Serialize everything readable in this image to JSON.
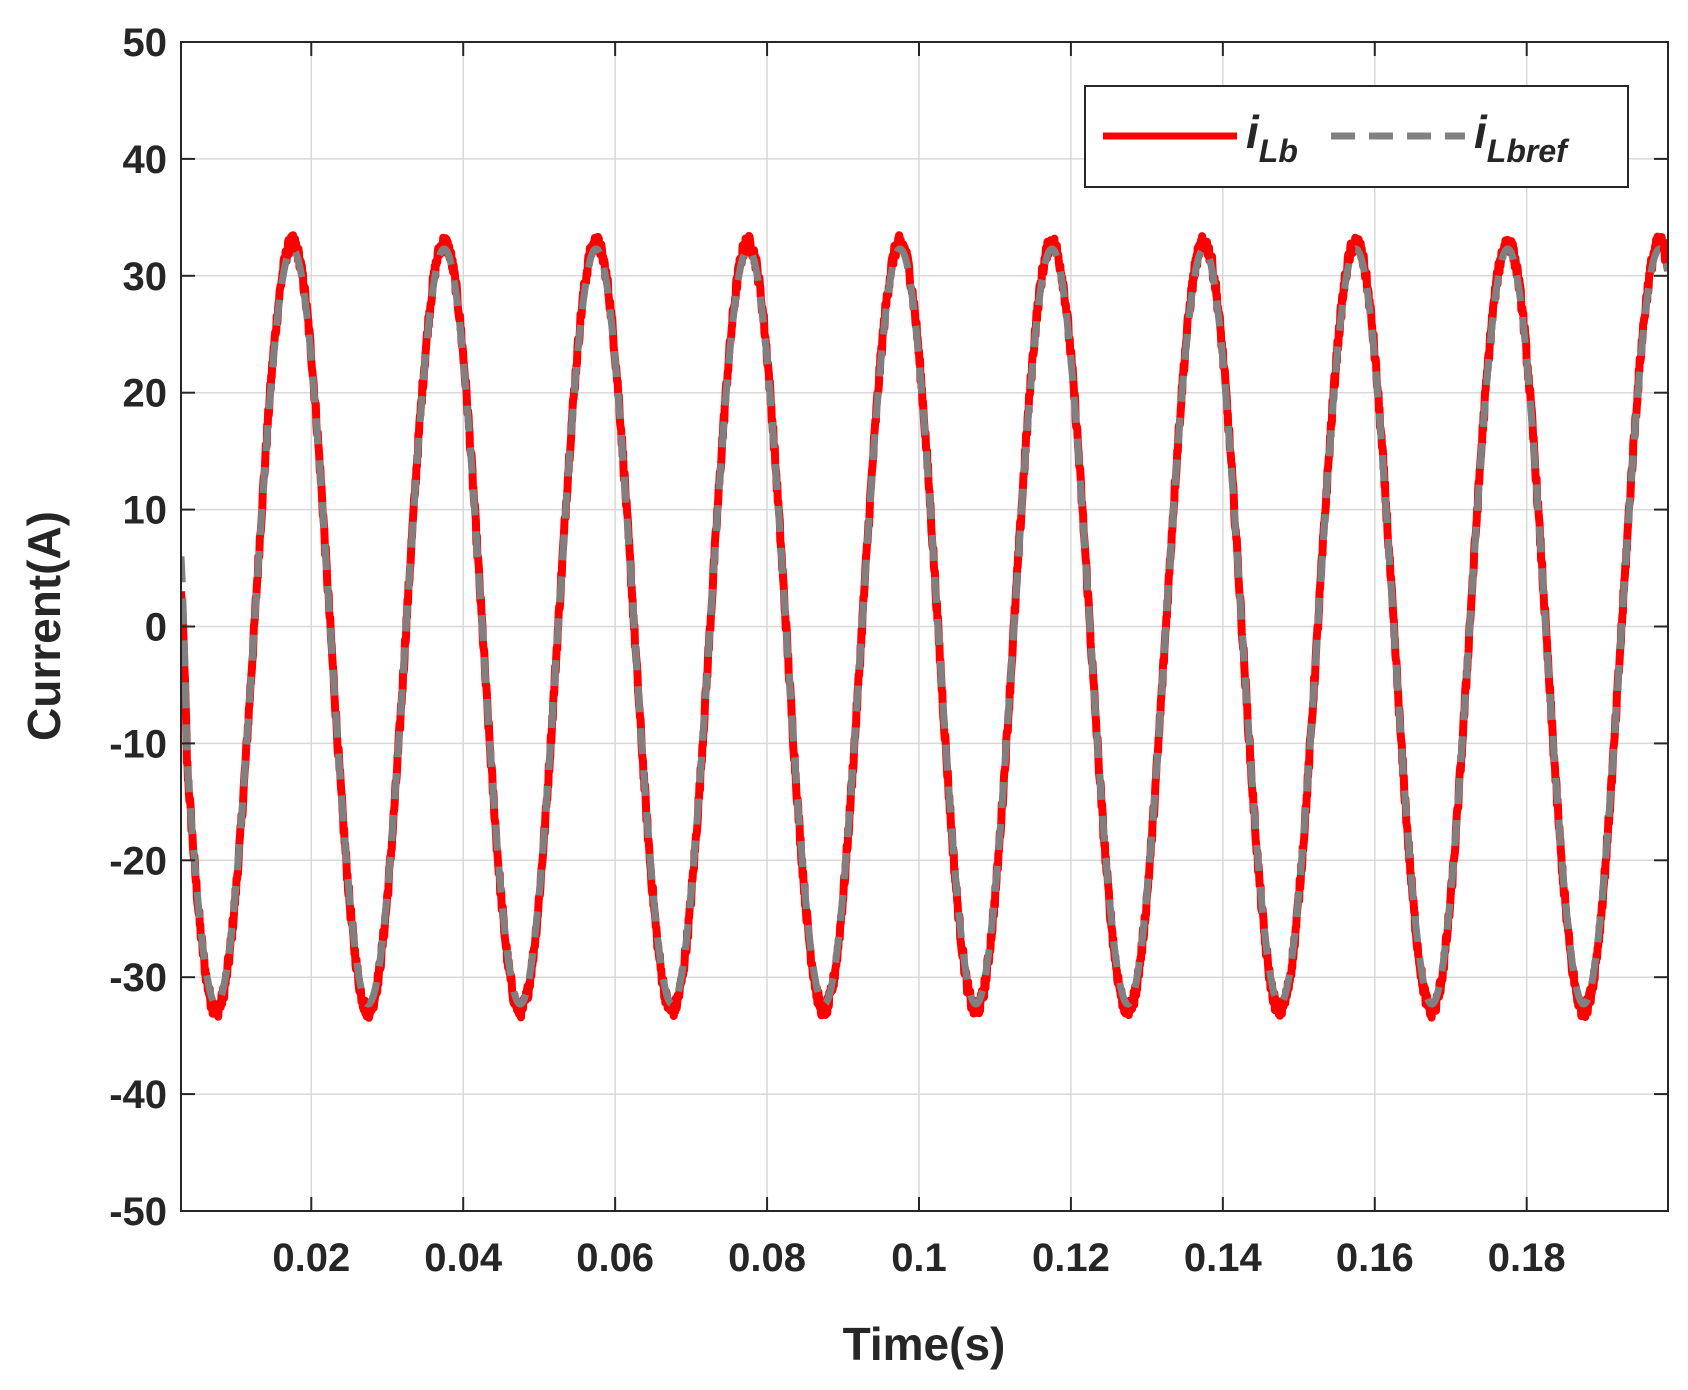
{
  "chart_data": {
    "type": "line",
    "title": "",
    "xlabel": "Time(s)",
    "ylabel": "Current(A)",
    "xlim": [
      0.00285,
      0.1986
    ],
    "ylim": [
      -50,
      50
    ],
    "xticks": [
      0.02,
      0.04,
      0.06,
      0.08,
      0.1,
      0.12,
      0.14,
      0.16,
      0.18
    ],
    "xtick_labels": [
      "0.02",
      "0.04",
      "0.06",
      "0.08",
      "0.1",
      "0.12",
      "0.14",
      "0.16",
      "0.18"
    ],
    "yticks": [
      -50,
      -40,
      -30,
      -20,
      -10,
      0,
      10,
      20,
      30,
      40,
      50
    ],
    "ytick_labels": [
      "-50",
      "-40",
      "-30",
      "-20",
      "-10",
      "0",
      "10",
      "20",
      "30",
      "40",
      "50"
    ],
    "grid": true,
    "legend": {
      "placement": "top-right",
      "orientation": "horizontal"
    },
    "series": [
      {
        "name": "i_Lb",
        "label_main": "i",
        "label_sub": "Lb",
        "color": "#ff0000",
        "style": "solid",
        "waveform": "sinusoid",
        "amplitude": 32.8,
        "frequency_hz": 50,
        "peak_time": 0.0175,
        "noise_amplitude": 0.7,
        "start_point": {
          "x": 0.00285,
          "y": 3
        }
      },
      {
        "name": "i_Lbref",
        "label_main": "i",
        "label_sub": "Lbref",
        "color": "#808080",
        "style": "dashed",
        "waveform": "sinusoid",
        "amplitude": 32.3,
        "frequency_hz": 50,
        "peak_time": 0.0175,
        "noise_amplitude": 0,
        "start_point": {
          "x": 0.00285,
          "y": 6
        }
      }
    ]
  }
}
